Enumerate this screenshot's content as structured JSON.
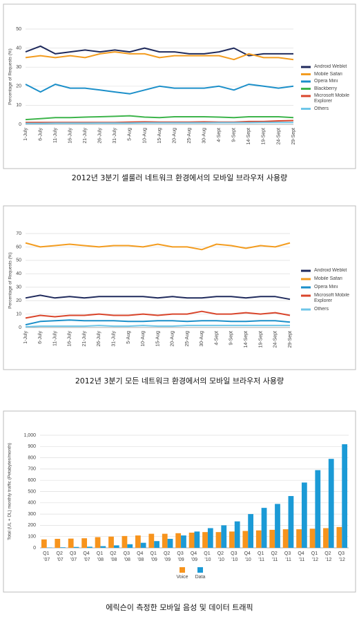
{
  "chart_data": [
    {
      "type": "line",
      "caption": "2012년 3분기 셀룰러 네트워크 환경에서의 모바일 브라우저 사용량",
      "y_label": "Percentage of Requests (%)",
      "categories": [
        "1-July",
        "6-July",
        "11-July",
        "16-July",
        "21-July",
        "26-July",
        "31-July",
        "5-Aug",
        "10-Aug",
        "15-Aug",
        "20-Aug",
        "25-Aug",
        "30-Aug",
        "4-Sept",
        "9-Sept",
        "14-Sept",
        "19-Sept",
        "24-Sept",
        "29-Sept"
      ],
      "ylim": [
        0,
        50
      ],
      "yticks": [
        0,
        10,
        20,
        30,
        40,
        50
      ],
      "grid": true,
      "series": [
        {
          "name": "Android Webkit",
          "color": "#1f2a5c",
          "values": [
            38,
            41,
            37,
            38,
            39,
            38,
            39,
            38,
            40,
            38,
            38,
            37,
            37,
            38,
            40,
            36,
            37,
            37,
            37
          ]
        },
        {
          "name": "Mobile Safari",
          "color": "#f39c1f",
          "values": [
            35,
            36,
            35,
            36,
            35,
            37,
            38,
            37,
            37,
            35,
            36,
            36,
            36,
            36,
            34,
            37,
            35,
            35,
            34
          ]
        },
        {
          "name": "Opera Mini",
          "color": "#1b8fc9",
          "values": [
            21,
            17,
            21,
            19,
            19,
            18,
            17,
            16,
            18,
            20,
            19,
            19,
            19,
            20,
            18,
            21,
            20,
            19,
            20
          ]
        },
        {
          "name": "Blackberry",
          "color": "#3cb44a",
          "values": [
            2.5,
            3,
            3.5,
            3.5,
            3.8,
            4,
            4.2,
            4.5,
            3.8,
            3.5,
            4,
            4,
            4,
            3.8,
            3.5,
            4,
            4,
            4,
            3.5
          ]
        },
        {
          "name": "Microsoft Mobile Explorer",
          "color": "#d9452b",
          "values": [
            1,
            1,
            1,
            1,
            1,
            1,
            1,
            1.2,
            1.3,
            1.2,
            1.2,
            1.2,
            1.3,
            1.2,
            1.2,
            1.5,
            1.5,
            1.8,
            2
          ]
        },
        {
          "name": "Others",
          "color": "#6ec6e8",
          "values": [
            0.5,
            0.5,
            0.6,
            0.6,
            0.6,
            0.7,
            0.7,
            0.7,
            0.8,
            0.8,
            0.8,
            0.8,
            0.8,
            0.9,
            0.9,
            0.9,
            1,
            1,
            1
          ]
        }
      ]
    },
    {
      "type": "line",
      "caption": "2012년 3분기 모든 네트워크 환경에서의 모바일 브라우저 사용량",
      "y_label": "Percentage of Requests (%)",
      "categories": [
        "1-July",
        "6-July",
        "11-July",
        "16-July",
        "21-July",
        "26-July",
        "31-July",
        "5-Aug",
        "10-Aug",
        "15-Aug",
        "20-Aug",
        "25-Aug",
        "30-Aug",
        "4-Sept",
        "9-Sept",
        "14-Sept",
        "19-Sept",
        "24-Sept",
        "29-Sept"
      ],
      "ylim": [
        0,
        70
      ],
      "yticks": [
        0,
        10,
        20,
        30,
        40,
        50,
        60,
        70
      ],
      "grid": true,
      "series": [
        {
          "name": "Android Webkit",
          "color": "#1f2a5c",
          "values": [
            22,
            24,
            22,
            23,
            22,
            23,
            23,
            23,
            23,
            22,
            23,
            22,
            22,
            23,
            23,
            22,
            23,
            23,
            21
          ]
        },
        {
          "name": "Mobile Safari",
          "color": "#f39c1f",
          "values": [
            63,
            60,
            61,
            62,
            61,
            60,
            61,
            61,
            60,
            62,
            60,
            60,
            58,
            62,
            61,
            59,
            61,
            60,
            63
          ]
        },
        {
          "name": "Opera Mini",
          "color": "#1b8fc9",
          "values": [
            2,
            4.5,
            5,
            5.5,
            5,
            5,
            5,
            4.5,
            4.5,
            5,
            5,
            4.5,
            5,
            5,
            4.5,
            4.5,
            5,
            5,
            4
          ]
        },
        {
          "name": "Microsoft Mobile Explorer",
          "color": "#d9452b",
          "values": [
            7,
            9,
            8,
            9,
            9,
            10,
            9,
            9,
            10,
            9,
            10,
            10,
            12,
            10,
            10,
            11,
            10,
            11,
            9
          ]
        },
        {
          "name": "Others",
          "color": "#6ec6e8",
          "values": [
            0.5,
            1,
            1,
            1,
            1,
            1.5,
            1,
            1,
            1.5,
            1,
            1,
            1.5,
            1.5,
            1.5,
            1.5,
            1.5,
            1.5,
            1.5,
            1.5
          ]
        }
      ]
    },
    {
      "type": "bar",
      "caption": "에릭슨이 측정한 모바일 음성 및 데이터 트래픽",
      "y_label": "Total (UL + DL) monthly traffic (Petabytes/month)",
      "categories": [
        "Q1 '07",
        "Q2 '07",
        "Q3 '07",
        "Q4 '07",
        "Q1 '08",
        "Q2 '08",
        "Q3 '08",
        "Q4 '08",
        "Q1 '09",
        "Q2 '09",
        "Q3 '09",
        "Q4 '09",
        "Q1 '10",
        "Q2 '10",
        "Q3 '10",
        "Q4 '10",
        "Q1 '11",
        "Q2 '11",
        "Q3 '11",
        "Q4 '11",
        "Q1 '12",
        "Q2 '12",
        "Q3 '12"
      ],
      "ylim": [
        0,
        1000
      ],
      "yticks": [
        0,
        100,
        200,
        300,
        400,
        500,
        600,
        700,
        800,
        900,
        {
          "value": 1000,
          "label": "1,000"
        }
      ],
      "grid": true,
      "series": [
        {
          "name": "Voice",
          "color": "#f7941d",
          "values": [
            75,
            80,
            82,
            85,
            95,
            100,
            105,
            110,
            125,
            125,
            130,
            135,
            140,
            140,
            145,
            150,
            155,
            160,
            165,
            165,
            170,
            175,
            185
          ]
        },
        {
          "name": "Data",
          "color": "#1b9ad6",
          "values": [
            3,
            5,
            8,
            10,
            15,
            22,
            32,
            45,
            60,
            80,
            110,
            145,
            175,
            200,
            235,
            300,
            355,
            390,
            460,
            580,
            690,
            790,
            920
          ]
        }
      ]
    }
  ]
}
